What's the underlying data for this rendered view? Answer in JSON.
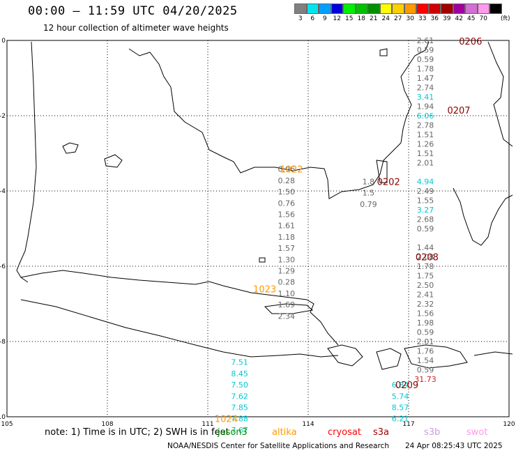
{
  "header": {
    "title": "00:00 – 11:59 UTC 04/20/2025",
    "subtitle": "12 hour collection of altimeter wave heights"
  },
  "legend": {
    "unit": "(ft)",
    "items": [
      {
        "label": "3",
        "color": "#808080"
      },
      {
        "label": "6",
        "color": "#00e5ee"
      },
      {
        "label": "9",
        "color": "#00a0ff"
      },
      {
        "label": "12",
        "color": "#0000d8"
      },
      {
        "label": "15",
        "color": "#00f000"
      },
      {
        "label": "18",
        "color": "#00c000"
      },
      {
        "label": "21",
        "color": "#009000"
      },
      {
        "label": "24",
        "color": "#ffff00"
      },
      {
        "label": "27",
        "color": "#ffd000"
      },
      {
        "label": "30",
        "color": "#ff9900"
      },
      {
        "label": "33",
        "color": "#ff0000"
      },
      {
        "label": "36",
        "color": "#d00000"
      },
      {
        "label": "39",
        "color": "#a00000"
      },
      {
        "label": "42",
        "color": "#a000a0"
      },
      {
        "label": "45",
        "color": "#d070d0"
      },
      {
        "label": "70",
        "color": "#ff99ee"
      },
      {
        "label": "",
        "color": "#000000"
      }
    ]
  },
  "axes": {
    "lon_labels": [
      "105",
      "108",
      "111",
      "114",
      "117",
      "120"
    ],
    "lat_labels": [
      "0",
      "-2",
      "-4",
      "-6",
      "-8",
      "-10"
    ],
    "lon_range": [
      105,
      120
    ],
    "lat_range": [
      0,
      -10
    ]
  },
  "colors": {
    "gray": "#666666",
    "cyan": "#00c8d2",
    "dark_red": "#8b0000",
    "red": "#cc2020",
    "orange": "#ff9900"
  },
  "tracks": [
    {
      "label": "0206",
      "lon": 118.85,
      "lat": -0.02,
      "color": "#8b0000"
    },
    {
      "label": "0207",
      "lon": 118.5,
      "lat": -1.85,
      "color": "#8b0000"
    },
    {
      "label": "0202",
      "lon": 116.4,
      "lat": -3.75,
      "color": "#8b0000"
    },
    {
      "label": "0208",
      "lon": 117.55,
      "lat": -5.75,
      "color": "#8b0000"
    },
    {
      "label": "0209",
      "lon": 116.95,
      "lat": -9.15,
      "color": "#8b0000"
    },
    {
      "label": "1022",
      "lon": 113.5,
      "lat": -3.42,
      "color": "#ff9900"
    },
    {
      "label": "1023",
      "lon": 112.7,
      "lat": -6.6,
      "color": "#ff9900"
    },
    {
      "label": "1024",
      "lon": 111.55,
      "lat": -10.05,
      "color": "#ff9900"
    }
  ],
  "obs_columns": [
    {
      "id": "east",
      "lon": 117.5,
      "lat_start": 0.0,
      "lat_step": -0.25,
      "items": [
        {
          "v": "2.61",
          "c": "#666666"
        },
        {
          "v": "0.59",
          "c": "#666666"
        },
        {
          "v": "0.59",
          "c": "#666666"
        },
        {
          "v": "1.78",
          "c": "#666666"
        },
        {
          "v": "1.47",
          "c": "#666666"
        },
        {
          "v": "2.74",
          "c": "#666666"
        },
        {
          "v": "3.41",
          "c": "#00c8d2"
        },
        {
          "v": "1.94",
          "c": "#666666"
        },
        {
          "v": "6.06",
          "c": "#00c8d2"
        },
        {
          "v": "2.78",
          "c": "#666666"
        },
        {
          "v": "1.51",
          "c": "#666666"
        },
        {
          "v": "1.26",
          "c": "#666666"
        },
        {
          "v": "1.51",
          "c": "#666666"
        },
        {
          "v": "2.01",
          "c": "#666666"
        },
        {
          "v": "",
          "c": "#666666"
        },
        {
          "v": "4.94",
          "c": "#00c8d2"
        },
        {
          "v": "2.49",
          "c": "#666666"
        },
        {
          "v": "1.55",
          "c": "#666666"
        },
        {
          "v": "3.27",
          "c": "#00c8d2"
        },
        {
          "v": "2.68",
          "c": "#666666"
        },
        {
          "v": "0.59",
          "c": "#666666"
        },
        {
          "v": "",
          "c": "#666666"
        },
        {
          "v": "1.44",
          "c": "#666666"
        },
        {
          "v": "2.08",
          "c": "#666666"
        },
        {
          "v": "1.78",
          "c": "#666666"
        },
        {
          "v": "1.75",
          "c": "#666666"
        },
        {
          "v": "2.50",
          "c": "#666666"
        },
        {
          "v": "2.41",
          "c": "#666666"
        },
        {
          "v": "2.32",
          "c": "#666666"
        },
        {
          "v": "1.56",
          "c": "#666666"
        },
        {
          "v": "1.98",
          "c": "#666666"
        },
        {
          "v": "0.59",
          "c": "#666666"
        },
        {
          "v": "2.01",
          "c": "#666666"
        },
        {
          "v": "1.76",
          "c": "#666666"
        },
        {
          "v": "1.54",
          "c": "#666666"
        },
        {
          "v": "0.59",
          "c": "#666666"
        },
        {
          "v": "31.73",
          "c": "#cc2020"
        }
      ]
    },
    {
      "id": "mid",
      "lon": 113.35,
      "lat_start": -3.42,
      "lat_step": -0.3,
      "items": [
        {
          "v": "0.96",
          "c": "#666666"
        },
        {
          "v": "0.28",
          "c": "#666666"
        },
        {
          "v": "1.50",
          "c": "#666666"
        },
        {
          "v": "0.76",
          "c": "#666666"
        },
        {
          "v": "1.56",
          "c": "#666666"
        },
        {
          "v": "1.61",
          "c": "#666666"
        },
        {
          "v": "1.18",
          "c": "#666666"
        },
        {
          "v": "1.57",
          "c": "#666666"
        },
        {
          "v": "1.30",
          "c": "#666666"
        },
        {
          "v": "1.29",
          "c": "#666666"
        },
        {
          "v": "0.28",
          "c": "#666666"
        },
        {
          "v": "1.10",
          "c": "#666666"
        },
        {
          "v": "1.69",
          "c": "#666666"
        },
        {
          "v": "2.34",
          "c": "#666666"
        }
      ]
    },
    {
      "id": "south",
      "lon": 111.95,
      "lat_start": -8.55,
      "lat_step": -0.3,
      "items": [
        {
          "v": "7.51",
          "c": "#00c8d2"
        },
        {
          "v": "8.45",
          "c": "#00c8d2"
        },
        {
          "v": "7.50",
          "c": "#00c8d2"
        },
        {
          "v": "7.62",
          "c": "#00c8d2"
        },
        {
          "v": "7.85",
          "c": "#00c8d2"
        },
        {
          "v": "7.88",
          "c": "#00c8d2"
        },
        {
          "v": "7.67",
          "c": "#00c8d2"
        }
      ]
    },
    {
      "id": "southeast",
      "lon": 116.75,
      "lat_start": -9.15,
      "lat_step": -0.3,
      "items": [
        {
          "v": "6.84",
          "c": "#00c8d2"
        },
        {
          "v": "5.74",
          "c": "#00c8d2"
        },
        {
          "v": "8.57",
          "c": "#00c8d2"
        },
        {
          "v": "6.21",
          "c": "#00c8d2"
        }
      ]
    },
    {
      "id": "borneo",
      "lon": 115.8,
      "lat_start": -3.75,
      "lat_step": -0.3,
      "items": [
        {
          "v": "1.8",
          "c": "#666666"
        },
        {
          "v": "1.5",
          "c": "#666666"
        },
        {
          "v": "0.79",
          "c": "#666666"
        }
      ]
    }
  ],
  "note": {
    "prefix": "note:  1) Time is in UTC;  2) SWH is in feet",
    "satellites": [
      {
        "name": "jason3",
        "color": "#009000"
      },
      {
        "name": "altika",
        "color": "#ff9900"
      },
      {
        "name": "cryosat",
        "color": "#ff0000"
      },
      {
        "name": "s3a",
        "color": "#a00000"
      },
      {
        "name": "s3b",
        "color": "#c8a0e0"
      },
      {
        "name": "swot",
        "color": "#ff99ee"
      }
    ]
  },
  "footer": {
    "credit": "NOAA/NESDIS Center for Satellite Applications and Research",
    "timestamp": "24 Apr 08:25:43 UTC 2025"
  }
}
